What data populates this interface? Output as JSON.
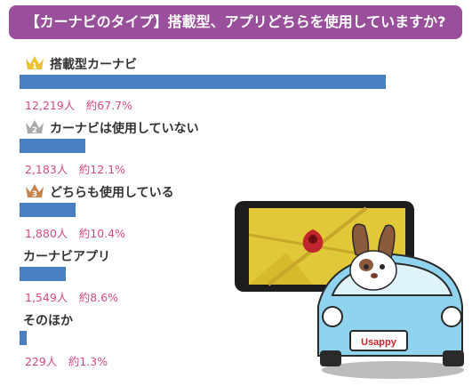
{
  "title": "【カーナビのタイプ】搭載型、アプリどちらを使用していますか?",
  "ranks": [
    "1",
    "2",
    "3"
  ],
  "car_plate": "Usappy",
  "colors": {
    "title_bg": "#9a4f9c",
    "bar": "#4a7ec3",
    "value_text": "#d34a8a",
    "crown_gold": "#e8c233",
    "crown_silver": "#a9a9a9",
    "crown_bronze": "#c8814a",
    "car_body": "#8fd3ee"
  },
  "chart_data": {
    "type": "bar",
    "orientation": "horizontal",
    "title": "【カーナビのタイプ】搭載型、アプリどちらを使用していますか?",
    "categories": [
      "搭載型カーナビ",
      "カーナビは使用していない",
      "どちらも使用している",
      "カーナビアプリ",
      "そのほか"
    ],
    "values": [
      12219,
      2183,
      1880,
      1549,
      229
    ],
    "value_unit": "人",
    "percent_prefix": "約",
    "percents": [
      67.7,
      12.1,
      10.4,
      8.6,
      1.3
    ],
    "value_labels": [
      "12,219人　約67.7%",
      "2,183人　約12.1%",
      "1,880人　約10.4%",
      "1,549人　約8.6%",
      "229人　約1.3%"
    ],
    "xlim": [
      0,
      100
    ],
    "grid": false,
    "legend": "none"
  }
}
